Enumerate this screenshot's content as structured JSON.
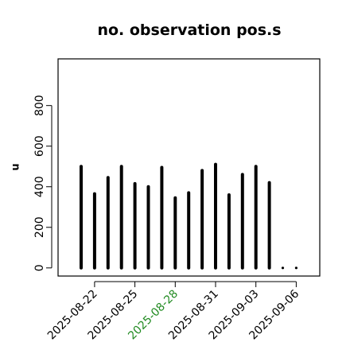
{
  "chart_data": {
    "type": "bar",
    "title": "no. observation pos.s",
    "xlabel": "",
    "ylabel": "n",
    "ylim": [
      -40,
      1030
    ],
    "yticks": [
      0,
      200,
      400,
      600,
      800
    ],
    "x": [
      "2025-08-21",
      "2025-08-22",
      "2025-08-23",
      "2025-08-24",
      "2025-08-25",
      "2025-08-26",
      "2025-08-27",
      "2025-08-28",
      "2025-08-29",
      "2025-08-30",
      "2025-08-31",
      "2025-09-01",
      "2025-09-02",
      "2025-09-03",
      "2025-09-04",
      "2025-09-05",
      "2025-09-06"
    ],
    "values": [
      500,
      365,
      445,
      500,
      415,
      400,
      495,
      345,
      370,
      480,
      510,
      360,
      460,
      500,
      420,
      0,
      0
    ],
    "xticks": [
      "2025-08-22",
      "2025-08-25",
      "2025-08-28",
      "2025-08-31",
      "2025-09-03",
      "2025-09-06"
    ],
    "highlight_tick": "2025-08-28",
    "bar_color": "#000000",
    "highlight_color": "#228B22",
    "grid": false
  }
}
